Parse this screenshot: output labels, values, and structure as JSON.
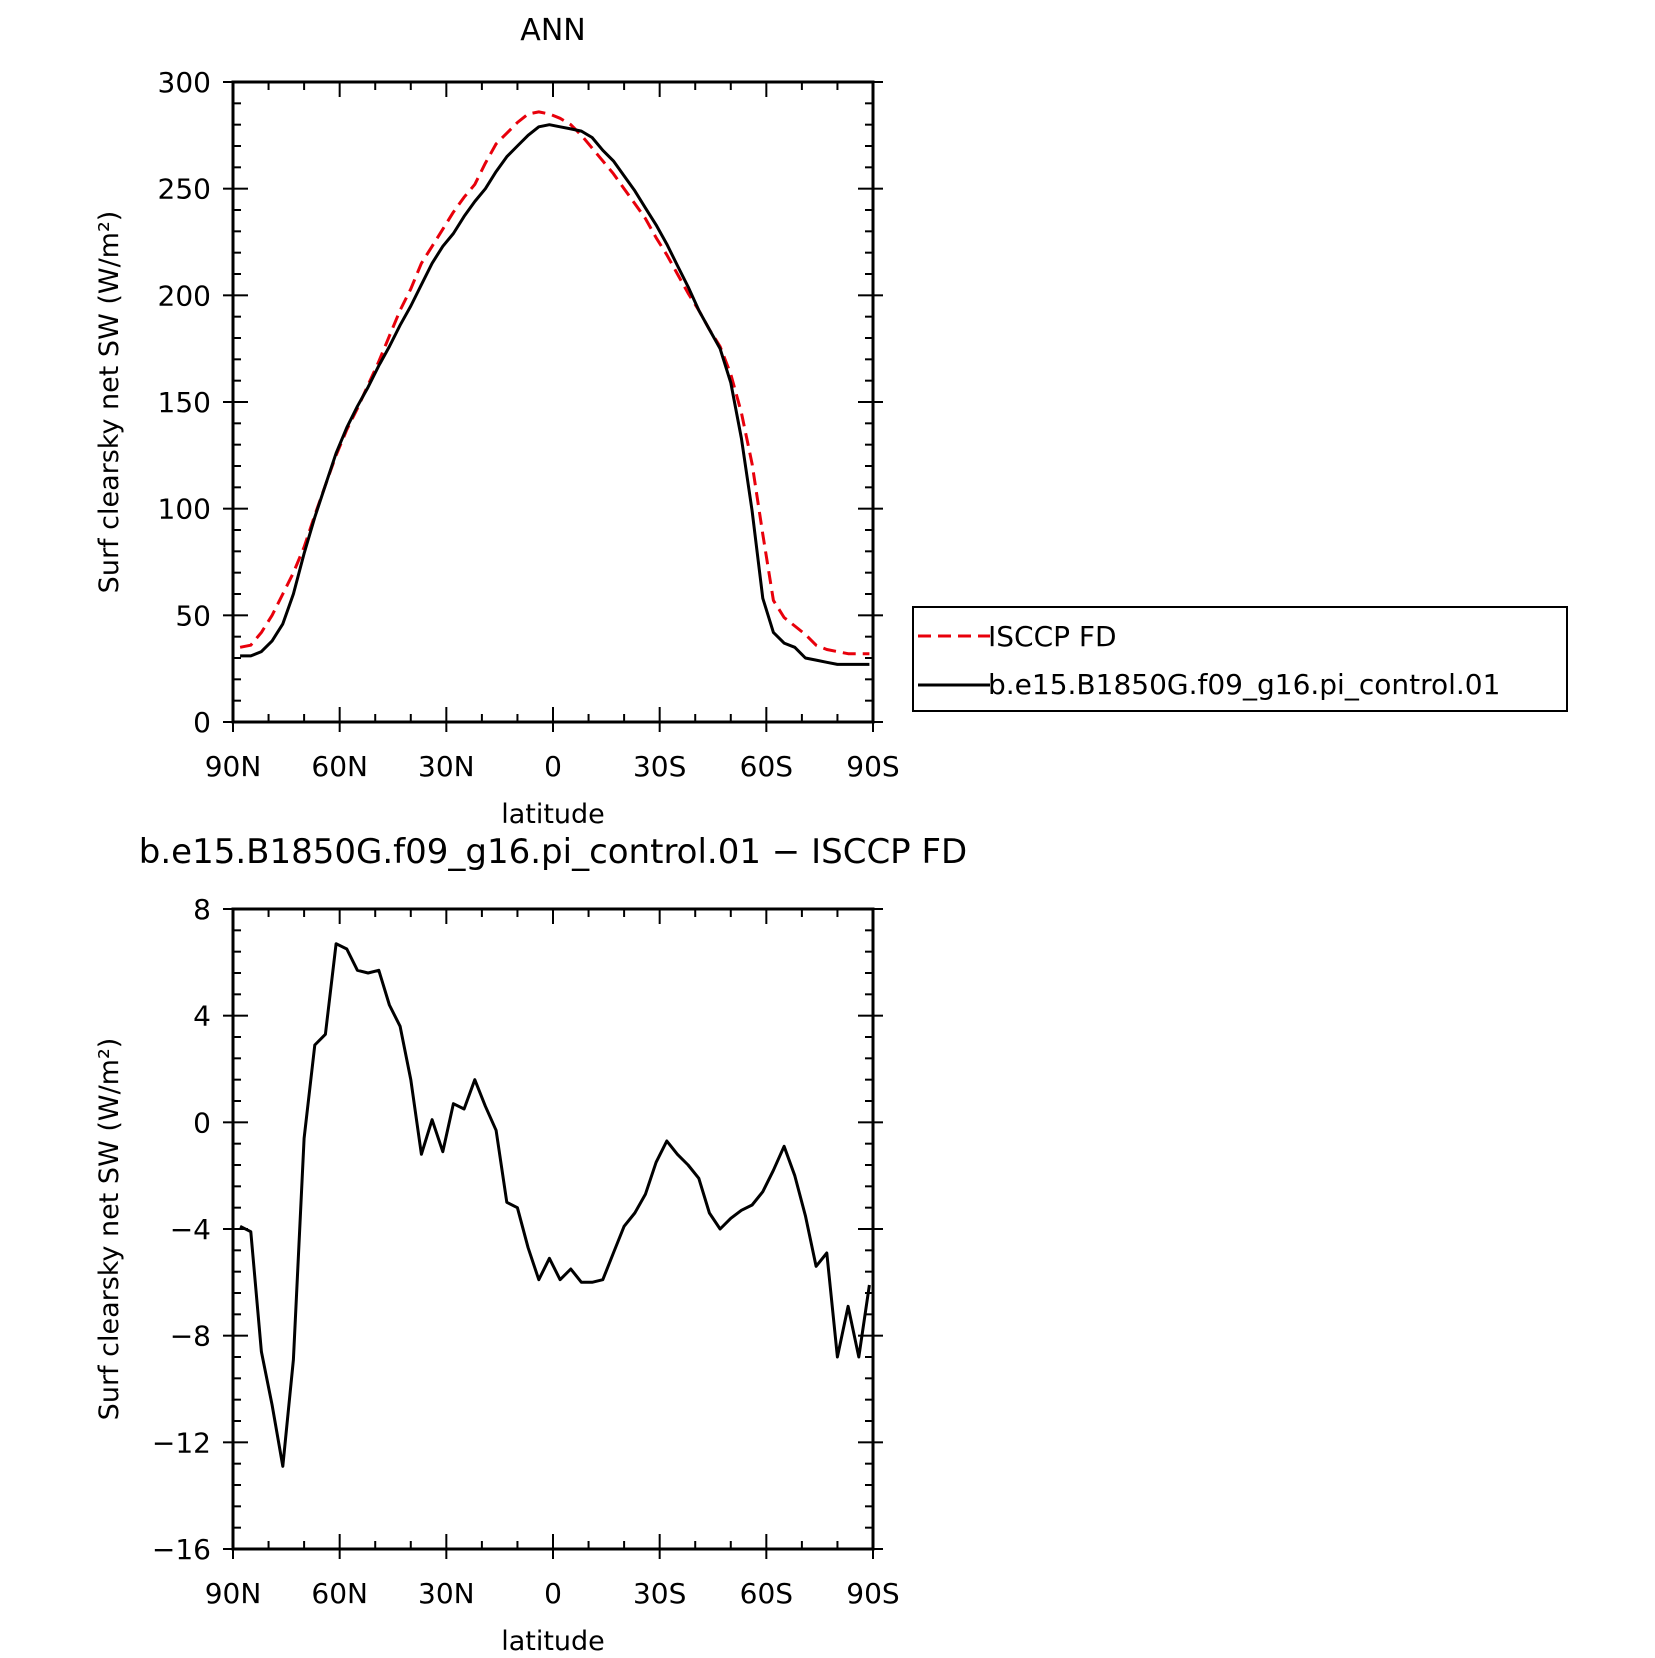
{
  "chart_data": [
    {
      "type": "line",
      "title": "ANN",
      "xlabel": "latitude",
      "ylabel": "Surf clearsky net SW (W/m²)",
      "x_direction": "north-to-south",
      "xlim": [
        90,
        -90
      ],
      "ylim": [
        0,
        300
      ],
      "x_ticks": [
        {
          "value": 90,
          "label": "90N"
        },
        {
          "value": 60,
          "label": "60N"
        },
        {
          "value": 30,
          "label": "30N"
        },
        {
          "value": 0,
          "label": "0"
        },
        {
          "value": -30,
          "label": "30S"
        },
        {
          "value": -60,
          "label": "60S"
        },
        {
          "value": -90,
          "label": "90S"
        }
      ],
      "y_ticks": [
        {
          "value": 0,
          "label": "0"
        },
        {
          "value": 50,
          "label": "50"
        },
        {
          "value": 100,
          "label": "100"
        },
        {
          "value": 150,
          "label": "150"
        },
        {
          "value": 200,
          "label": "200"
        },
        {
          "value": 250,
          "label": "250"
        },
        {
          "value": 300,
          "label": "300"
        }
      ],
      "legend_position": "right",
      "series": [
        {
          "name": "ISCCP FD",
          "color": "#e8000b",
          "style": "dashed",
          "x": [
            88,
            85,
            82,
            79,
            76,
            73,
            70,
            67,
            64,
            61,
            58,
            55,
            52,
            49,
            46,
            43,
            40,
            37,
            34,
            31,
            28,
            25,
            22,
            19,
            16,
            13,
            10,
            7,
            4,
            1,
            -2,
            -5,
            -8,
            -11,
            -14,
            -17,
            -20,
            -23,
            -26,
            -29,
            -32,
            -35,
            -38,
            -41,
            -44,
            -47,
            -50,
            -53,
            -56,
            -59,
            -62,
            -65,
            -68,
            -71,
            -74,
            -77,
            -80,
            -83,
            -86,
            -89
          ],
          "y": [
            35,
            36,
            42,
            50,
            60,
            70,
            82,
            97,
            111,
            125,
            137,
            147,
            158,
            169,
            181,
            193,
            203,
            215,
            223,
            231,
            239,
            246,
            252,
            262,
            271,
            276,
            281,
            285,
            286,
            285,
            283,
            280,
            275,
            269,
            263,
            257,
            250,
            243,
            236,
            227,
            219,
            210,
            201,
            193,
            184,
            176,
            163,
            145,
            121,
            88,
            57,
            49,
            45,
            41,
            36,
            34,
            33,
            32,
            32,
            32
          ]
        },
        {
          "name": "b.e15.B1850G.f09_g16.pi_control.01",
          "color": "#000000",
          "style": "solid",
          "x": [
            88,
            85,
            82,
            79,
            76,
            73,
            70,
            67,
            64,
            61,
            58,
            55,
            52,
            49,
            46,
            43,
            40,
            37,
            34,
            31,
            28,
            25,
            22,
            19,
            16,
            13,
            10,
            7,
            4,
            1,
            -2,
            -5,
            -8,
            -11,
            -14,
            -17,
            -20,
            -23,
            -26,
            -29,
            -32,
            -35,
            -38,
            -41,
            -44,
            -47,
            -50,
            -53,
            -56,
            -59,
            -62,
            -65,
            -68,
            -71,
            -74,
            -77,
            -80,
            -83,
            -86,
            -89
          ],
          "y": [
            31,
            31,
            33,
            38,
            46,
            60,
            79,
            96,
            111,
            126,
            138,
            148,
            157,
            167,
            176,
            186,
            195,
            205,
            215,
            223,
            229,
            237,
            244,
            250,
            258,
            265,
            270,
            275,
            279,
            280,
            279,
            278,
            277,
            274,
            268,
            263,
            256,
            249,
            241,
            233,
            224,
            214,
            204,
            193,
            184,
            175,
            159,
            133,
            99,
            58,
            42,
            37,
            35,
            30,
            29,
            28,
            27,
            27,
            27,
            27
          ]
        }
      ]
    },
    {
      "type": "line",
      "title": "b.e15.B1850G.f09_g16.pi_control.01 − ISCCP FD",
      "xlabel": "latitude",
      "ylabel": "Surf clearsky net SW (W/m²)",
      "x_direction": "north-to-south",
      "xlim": [
        90,
        -90
      ],
      "ylim": [
        -16,
        8
      ],
      "x_ticks": [
        {
          "value": 90,
          "label": "90N"
        },
        {
          "value": 60,
          "label": "60N"
        },
        {
          "value": 30,
          "label": "30N"
        },
        {
          "value": 0,
          "label": "0"
        },
        {
          "value": -30,
          "label": "30S"
        },
        {
          "value": -60,
          "label": "60S"
        },
        {
          "value": -90,
          "label": "90S"
        }
      ],
      "y_ticks": [
        {
          "value": -16,
          "label": "−16"
        },
        {
          "value": -12,
          "label": "−12"
        },
        {
          "value": -8,
          "label": "−8"
        },
        {
          "value": -4,
          "label": "−4"
        },
        {
          "value": 0,
          "label": "0"
        },
        {
          "value": 4,
          "label": "4"
        },
        {
          "value": 8,
          "label": "8"
        }
      ],
      "series": [
        {
          "name": "",
          "color": "#000000",
          "style": "solid",
          "x": [
            88,
            85,
            82,
            79,
            76,
            73,
            70,
            67,
            64,
            61,
            58,
            55,
            52,
            49,
            46,
            43,
            40,
            37,
            34,
            31,
            28,
            25,
            22,
            19,
            16,
            13,
            10,
            7,
            4,
            1,
            -2,
            -5,
            -8,
            -11,
            -14,
            -17,
            -20,
            -23,
            -26,
            -29,
            -32,
            -35,
            -38,
            -41,
            -44,
            -47,
            -50,
            -53,
            -56,
            -59,
            -62,
            -65,
            -68,
            -71,
            -74,
            -77,
            -80,
            -83,
            -86,
            -89
          ],
          "y": [
            -3.9,
            -4.1,
            -8.6,
            -10.6,
            -12.9,
            -8.9,
            -0.6,
            2.9,
            3.3,
            6.7,
            6.5,
            5.7,
            5.6,
            5.7,
            4.4,
            3.6,
            1.6,
            -1.2,
            0.1,
            -1.1,
            0.7,
            0.5,
            1.6,
            0.6,
            -0.3,
            -3.0,
            -3.2,
            -4.7,
            -5.9,
            -5.1,
            -5.9,
            -5.5,
            -6.0,
            -6.0,
            -5.9,
            -4.9,
            -3.9,
            -3.4,
            -2.7,
            -1.5,
            -0.7,
            -1.2,
            -1.6,
            -2.1,
            -3.4,
            -4.0,
            -3.6,
            -3.3,
            -3.1,
            -2.6,
            -1.8,
            -0.9,
            -2.0,
            -3.5,
            -5.4,
            -4.9,
            -8.8,
            -6.9,
            -8.8,
            -6.1
          ]
        }
      ]
    }
  ]
}
